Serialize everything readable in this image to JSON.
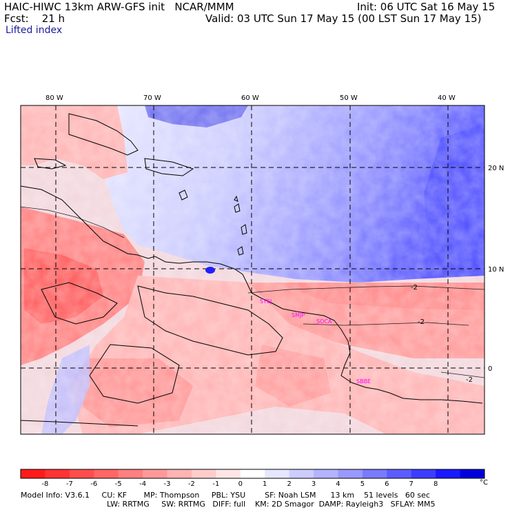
{
  "header": {
    "line1_left": "HAIC-HIWC 13km ARW-GFS init   NCAR/MMM",
    "line1_right": "Init: 06 UTC Sat 16 May 15",
    "line2_left": "Fcst:    21 h",
    "line2_right": "Valid: 03 UTC Sun 17 May 15 (00 LST Sun 17 May 15)",
    "field": "Lifted index"
  },
  "map": {
    "lon_labels": [
      "80 W",
      "70 W",
      "60 W",
      "50 W",
      "40 W"
    ],
    "lat_labels": [
      "20 N",
      "10 N",
      "0"
    ],
    "contour_labels": [
      "-2",
      "-2",
      "-2"
    ],
    "stations": [
      "SYEJ",
      "SMJP",
      "SOCA",
      "SBBE"
    ],
    "colors": {
      "land_border": "#000000",
      "station": "#ff00ff",
      "grid": "#000000"
    }
  },
  "colorbar": {
    "ticks": [
      "-8",
      "-7",
      "-6",
      "-5",
      "-4",
      "-3",
      "-2",
      "-1",
      "0",
      "1",
      "2",
      "3",
      "4",
      "5",
      "6",
      "7",
      "8"
    ],
    "unit": "°C",
    "colors": [
      "#ff1a1a",
      "#ff3333",
      "#ff4d4d",
      "#ff6666",
      "#ff8080",
      "#ff9999",
      "#ffb3b3",
      "#ffcccc",
      "#ffe6e6",
      "#ffffff",
      "#e6e6ff",
      "#ccccff",
      "#b3b3ff",
      "#9999ff",
      "#7a7aff",
      "#5c5cff",
      "#3d3dff",
      "#1a1aff",
      "#0000dd"
    ]
  },
  "footer": {
    "line1": "Model Info: V3.6.1     CU: KF       MP: Thompson     PBL: YSU        SF: Noah LSM      13 km    51 levels   60 sec",
    "line2": "LW: RRTMG     SW: RRTMG   DIFF: full    KM: 2D Smagor  DAMP: Rayleigh3   SFLAY: MM5"
  }
}
